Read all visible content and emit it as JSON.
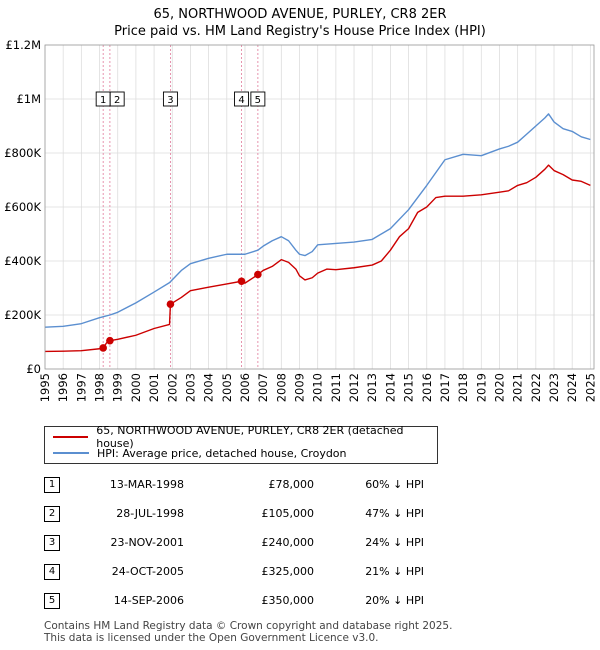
{
  "title_line1": "65, NORTHWOOD AVENUE, PURLEY, CR8 2ER",
  "title_line2": "Price paid vs. HM Land Registry's House Price Index (HPI)",
  "chart_data": {
    "type": "line",
    "title": "65, NORTHWOOD AVENUE, PURLEY, CR8 2ER — Price paid vs. HM Land Registry's House Price Index (HPI)",
    "xlabel": "",
    "ylabel": "",
    "xlim": [
      1995,
      2025.2
    ],
    "ylim": [
      0,
      1200000
    ],
    "y_ticks": [
      0,
      200000,
      400000,
      600000,
      800000,
      1000000,
      1200000
    ],
    "y_tick_labels": [
      "£0",
      "£200K",
      "£400K",
      "£600K",
      "£800K",
      "£1M",
      "£1.2M"
    ],
    "x_tick_labels": [
      "1995",
      "1996",
      "1997",
      "1998",
      "1999",
      "2000",
      "2001",
      "2002",
      "2003",
      "2004",
      "2005",
      "2006",
      "2007",
      "2008",
      "2009",
      "2010",
      "2011",
      "2012",
      "2013",
      "2014",
      "2015",
      "2016",
      "2017",
      "2018",
      "2019",
      "2020",
      "2021",
      "2022",
      "2023",
      "2024",
      "2025"
    ],
    "grid": true,
    "series": [
      {
        "name": "65, NORTHWOOD AVENUE, PURLEY, CR8 2ER (detached house)",
        "color": "#cc0000",
        "x": [
          1995.0,
          1996.0,
          1997.0,
          1998.0,
          1998.2,
          1998.4,
          1998.57,
          1999.0,
          2000.0,
          2001.0,
          2001.85,
          2001.9,
          2002.5,
          2003.0,
          2004.0,
          2005.0,
          2005.81,
          2006.0,
          2006.5,
          2006.71,
          2007.0,
          2007.5,
          2008.0,
          2008.4,
          2008.8,
          2009.0,
          2009.3,
          2009.7,
          2010.0,
          2010.5,
          2011.0,
          2012.0,
          2013.0,
          2013.5,
          2014.0,
          2014.5,
          2015.0,
          2015.5,
          2016.0,
          2016.5,
          2017.0,
          2018.0,
          2019.0,
          2020.0,
          2020.5,
          2021.0,
          2021.5,
          2022.0,
          2022.5,
          2022.7,
          2023.0,
          2023.5,
          2024.0,
          2024.5,
          2025.0
        ],
        "values": [
          65000,
          66000,
          68000,
          75000,
          78000,
          98000,
          105000,
          110000,
          125000,
          150000,
          165000,
          240000,
          265000,
          290000,
          303000,
          315000,
          325000,
          318000,
          340000,
          350000,
          365000,
          380000,
          405000,
          395000,
          370000,
          345000,
          330000,
          338000,
          355000,
          370000,
          368000,
          375000,
          385000,
          400000,
          440000,
          490000,
          520000,
          580000,
          600000,
          635000,
          640000,
          640000,
          645000,
          655000,
          660000,
          680000,
          690000,
          710000,
          740000,
          755000,
          735000,
          720000,
          700000,
          695000,
          680000
        ]
      },
      {
        "name": "HPI: Average price, detached house, Croydon",
        "color": "#5b8fd0",
        "x": [
          1995.0,
          1996.0,
          1997.0,
          1998.0,
          1998.57,
          1999.0,
          2000.0,
          2001.0,
          2001.85,
          2002.5,
          2003.0,
          2004.0,
          2005.0,
          2006.0,
          2006.71,
          2007.0,
          2007.5,
          2008.0,
          2008.4,
          2008.8,
          2009.0,
          2009.3,
          2009.7,
          2010.0,
          2011.0,
          2012.0,
          2013.0,
          2014.0,
          2015.0,
          2016.0,
          2017.0,
          2018.0,
          2019.0,
          2020.0,
          2020.5,
          2021.0,
          2021.5,
          2022.0,
          2022.5,
          2022.7,
          2023.0,
          2023.5,
          2024.0,
          2024.5,
          2025.0
        ],
        "values": [
          155000,
          158000,
          168000,
          190000,
          200000,
          210000,
          245000,
          285000,
          320000,
          365000,
          390000,
          410000,
          425000,
          425000,
          440000,
          455000,
          475000,
          490000,
          475000,
          440000,
          425000,
          420000,
          435000,
          460000,
          465000,
          470000,
          480000,
          520000,
          590000,
          680000,
          775000,
          795000,
          790000,
          815000,
          825000,
          840000,
          870000,
          900000,
          930000,
          945000,
          915000,
          890000,
          880000,
          860000,
          850000
        ]
      }
    ],
    "sales": [
      {
        "label": "1",
        "x": 1998.2,
        "price": 78000
      },
      {
        "label": "2",
        "x": 1998.57,
        "price": 105000
      },
      {
        "label": "3",
        "x": 2001.9,
        "price": 240000
      },
      {
        "label": "4",
        "x": 2005.81,
        "price": 325000
      },
      {
        "label": "5",
        "x": 2006.71,
        "price": 350000
      }
    ],
    "marker_label_value": 1000000,
    "legend_position": "below"
  },
  "legend": {
    "item1": "65, NORTHWOOD AVENUE, PURLEY, CR8 2ER (detached house)",
    "item2": "HPI: Average price, detached house, Croydon",
    "color1": "#cc0000",
    "color2": "#5b8fd0"
  },
  "table": {
    "rows": [
      {
        "num": "1",
        "date": "13-MAR-1998",
        "price": "£78,000",
        "hpi": "60% ↓ HPI"
      },
      {
        "num": "2",
        "date": "28-JUL-1998",
        "price": "£105,000",
        "hpi": "47% ↓ HPI"
      },
      {
        "num": "3",
        "date": "23-NOV-2001",
        "price": "£240,000",
        "hpi": "24% ↓ HPI"
      },
      {
        "num": "4",
        "date": "24-OCT-2005",
        "price": "£325,000",
        "hpi": "21% ↓ HPI"
      },
      {
        "num": "5",
        "date": "14-SEP-2006",
        "price": "£350,000",
        "hpi": "20% ↓ HPI"
      }
    ]
  },
  "footer": {
    "line1": "Contains HM Land Registry data © Crown copyright and database right 2025.",
    "line2": "This data is licensed under the Open Government Licence v3.0."
  }
}
